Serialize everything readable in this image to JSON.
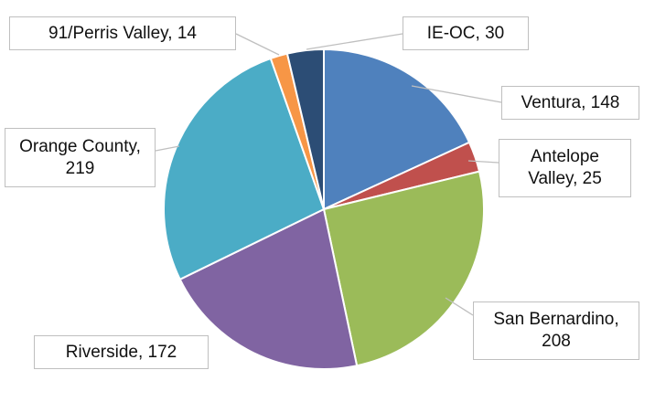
{
  "chart_data": {
    "type": "pie",
    "values": [
      148,
      25,
      208,
      172,
      219,
      14,
      30
    ],
    "value_labels": [
      "Ventura, 148",
      "Antelope Valley, 25",
      "San Bernardino, 208",
      "Riverside, 172",
      "Orange County, 219",
      "91/Perris Valley, 14",
      "IE-OC, 30"
    ],
    "colors": [
      "#4f81bd",
      "#c0504d",
      "#9bbb59",
      "#8064a2",
      "#4bacc6",
      "#f79646",
      "#2c4d75"
    ]
  }
}
